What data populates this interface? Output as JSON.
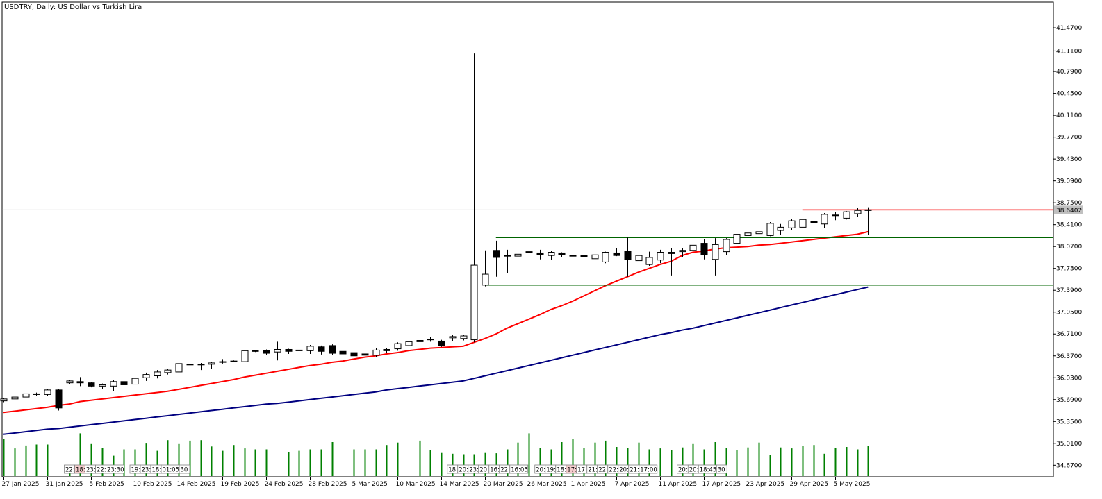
{
  "chart_data": {
    "type": "candlestick",
    "title": "USDTRY, Daily:  US Dollar vs Turkish Lira",
    "background": "#ffffff",
    "colors": {
      "bull_body": "#ffffff",
      "bear_body": "#000000",
      "wick": "#000000",
      "ma_fast": "#ff0000",
      "ma_slow": "#000080",
      "volume": "#008000",
      "resistance": "#ff0000",
      "range_lines": "#006400",
      "bid_line": "#c0c0c0",
      "price_badge": "#c0c0c0"
    },
    "ylim": [
      34.49,
      41.87
    ],
    "y_ticks": [
      "41.4700",
      "41.1100",
      "40.7900",
      "40.4500",
      "40.1100",
      "39.7700",
      "39.4300",
      "39.0900",
      "38.7500",
      "38.4100",
      "38.0700",
      "37.7300",
      "37.3900",
      "37.0500",
      "36.7100",
      "36.3700",
      "36.0300",
      "35.6900",
      "35.3500",
      "35.0100",
      "34.6700"
    ],
    "current_price": "38.6402",
    "x_labels": [
      "27 Jan 2025",
      "31 Jan 2025",
      "5 Feb 2025",
      "10 Feb 2025",
      "14 Feb 2025",
      "19 Feb 2025",
      "24 Feb 2025",
      "28 Feb 2025",
      "5 Mar 2025",
      "10 Mar 2025",
      "14 Mar 2025",
      "20 Mar 2025",
      "26 Mar 2025",
      "1 Apr 2025",
      "7 Apr 2025",
      "11 Apr 2025",
      "17 Apr 2025",
      "23 Apr 2025",
      "29 Apr 2025",
      "5 May 2025"
    ],
    "x_label_bars": [
      0,
      4,
      8,
      12,
      16,
      20,
      24,
      28,
      32,
      36,
      40,
      44,
      48,
      52,
      56,
      60,
      64,
      68,
      72,
      76
    ],
    "candles": [
      [
        35.67,
        35.71,
        35.65,
        35.7
      ],
      [
        35.7,
        35.74,
        35.69,
        35.73
      ],
      [
        35.73,
        35.8,
        35.72,
        35.78
      ],
      [
        35.78,
        35.8,
        35.75,
        35.77
      ],
      [
        35.77,
        35.86,
        35.75,
        35.84
      ],
      [
        35.84,
        35.86,
        35.52,
        35.56
      ],
      [
        35.95,
        36.0,
        35.93,
        35.98
      ],
      [
        35.97,
        36.04,
        35.9,
        35.95
      ],
      [
        35.95,
        35.96,
        35.88,
        35.9
      ],
      [
        35.9,
        35.94,
        35.86,
        35.92
      ],
      [
        35.9,
        36.0,
        35.82,
        35.97
      ],
      [
        35.97,
        35.98,
        35.89,
        35.92
      ],
      [
        35.93,
        36.06,
        35.9,
        36.02
      ],
      [
        36.03,
        36.11,
        35.98,
        36.08
      ],
      [
        36.06,
        36.15,
        36.02,
        36.12
      ],
      [
        36.11,
        36.17,
        36.08,
        36.15
      ],
      [
        36.12,
        36.27,
        36.05,
        36.25
      ],
      [
        36.24,
        36.26,
        36.22,
        36.23
      ],
      [
        36.23,
        36.26,
        36.15,
        36.24
      ],
      [
        36.24,
        36.28,
        36.17,
        36.26
      ],
      [
        36.27,
        36.32,
        36.25,
        36.28
      ],
      [
        36.28,
        36.3,
        36.27,
        36.29
      ],
      [
        36.28,
        36.55,
        36.25,
        36.45
      ],
      [
        36.45,
        36.46,
        36.43,
        36.44
      ],
      [
        36.45,
        36.47,
        36.38,
        36.41
      ],
      [
        36.43,
        36.59,
        36.3,
        36.47
      ],
      [
        36.47,
        36.48,
        36.4,
        36.44
      ],
      [
        36.45,
        36.47,
        36.42,
        36.46
      ],
      [
        36.45,
        36.54,
        36.4,
        36.52
      ],
      [
        36.51,
        36.53,
        36.39,
        36.44
      ],
      [
        36.53,
        36.55,
        36.38,
        36.41
      ],
      [
        36.44,
        36.46,
        36.37,
        36.4
      ],
      [
        36.42,
        36.45,
        36.34,
        36.37
      ],
      [
        36.4,
        36.44,
        36.33,
        36.38
      ],
      [
        36.38,
        36.49,
        36.35,
        36.46
      ],
      [
        36.45,
        36.49,
        36.42,
        36.47
      ],
      [
        36.48,
        36.58,
        36.45,
        36.56
      ],
      [
        36.53,
        36.62,
        36.51,
        36.59
      ],
      [
        36.59,
        36.62,
        36.56,
        36.61
      ],
      [
        36.62,
        36.66,
        36.59,
        36.63
      ],
      [
        36.6,
        36.62,
        36.51,
        36.53
      ],
      [
        36.65,
        36.7,
        36.6,
        36.67
      ],
      [
        36.64,
        36.7,
        36.61,
        36.68
      ],
      [
        36.62,
        41.07,
        36.58,
        37.78
      ],
      [
        37.47,
        38.01,
        37.45,
        37.64
      ],
      [
        38.01,
        38.16,
        37.6,
        37.9
      ],
      [
        37.92,
        38.02,
        37.66,
        37.93
      ],
      [
        37.92,
        37.96,
        37.89,
        37.95
      ],
      [
        37.99,
        38.0,
        37.93,
        37.97
      ],
      [
        37.97,
        38.02,
        37.87,
        37.94
      ],
      [
        37.93,
        38.0,
        37.86,
        37.98
      ],
      [
        37.97,
        37.98,
        37.91,
        37.94
      ],
      [
        37.93,
        37.97,
        37.83,
        37.92
      ],
      [
        37.93,
        37.96,
        37.83,
        37.91
      ],
      [
        37.88,
        37.99,
        37.82,
        37.94
      ],
      [
        37.83,
        37.99,
        37.81,
        37.98
      ],
      [
        37.97,
        38.04,
        37.92,
        37.93
      ],
      [
        38.0,
        38.21,
        37.6,
        37.87
      ],
      [
        37.85,
        38.21,
        37.8,
        37.93
      ],
      [
        37.79,
        37.99,
        37.77,
        37.9
      ],
      [
        37.86,
        38.02,
        37.81,
        37.98
      ],
      [
        37.96,
        38.04,
        37.62,
        37.98
      ],
      [
        37.99,
        38.05,
        37.9,
        38.01
      ],
      [
        38.01,
        38.11,
        37.98,
        38.09
      ],
      [
        38.12,
        38.19,
        37.87,
        37.94
      ],
      [
        37.87,
        38.2,
        37.62,
        38.1
      ],
      [
        37.99,
        38.2,
        37.94,
        38.18
      ],
      [
        38.12,
        38.28,
        38.08,
        38.26
      ],
      [
        38.24,
        38.33,
        38.2,
        38.28
      ],
      [
        38.27,
        38.33,
        38.23,
        38.3
      ],
      [
        38.24,
        38.45,
        38.23,
        38.43
      ],
      [
        38.32,
        38.42,
        38.25,
        38.37
      ],
      [
        38.36,
        38.5,
        38.33,
        38.47
      ],
      [
        38.37,
        38.51,
        38.34,
        38.49
      ],
      [
        38.46,
        38.53,
        38.43,
        38.44
      ],
      [
        38.42,
        38.59,
        38.36,
        38.57
      ],
      [
        38.55,
        38.61,
        38.48,
        38.56
      ],
      [
        38.51,
        38.62,
        38.49,
        38.61
      ],
      [
        38.58,
        38.67,
        38.53,
        38.63
      ],
      [
        38.63,
        38.68,
        38.25,
        38.64
      ]
    ],
    "ma_fast": [
      35.49,
      35.51,
      35.53,
      35.55,
      35.57,
      35.6,
      35.62,
      35.66,
      35.68,
      35.7,
      35.72,
      35.74,
      35.76,
      35.78,
      35.8,
      35.82,
      35.85,
      35.88,
      35.91,
      35.94,
      35.97,
      36.0,
      36.04,
      36.07,
      36.1,
      36.13,
      36.16,
      36.19,
      36.22,
      36.24,
      36.27,
      36.29,
      36.32,
      36.35,
      36.37,
      36.4,
      36.42,
      36.45,
      36.47,
      36.49,
      36.5,
      36.51,
      36.52,
      36.58,
      36.64,
      36.71,
      36.8,
      36.87,
      36.94,
      37.01,
      37.09,
      37.15,
      37.22,
      37.3,
      37.38,
      37.46,
      37.53,
      37.6,
      37.67,
      37.73,
      37.79,
      37.84,
      37.93,
      37.98,
      38.0,
      38.03,
      38.05,
      38.06,
      38.07,
      38.09,
      38.1,
      38.12,
      38.14,
      38.16,
      38.18,
      38.2,
      38.22,
      38.24,
      38.26,
      38.3
    ],
    "ma_slow": [
      35.15,
      35.17,
      35.19,
      35.21,
      35.23,
      35.24,
      35.26,
      35.28,
      35.3,
      35.32,
      35.34,
      35.36,
      35.38,
      35.4,
      35.42,
      35.44,
      35.46,
      35.48,
      35.5,
      35.52,
      35.54,
      35.56,
      35.58,
      35.6,
      35.62,
      35.63,
      35.65,
      35.67,
      35.69,
      35.71,
      35.73,
      35.75,
      35.77,
      35.79,
      35.81,
      35.84,
      35.86,
      35.88,
      35.9,
      35.92,
      35.94,
      35.96,
      35.98,
      36.02,
      36.06,
      36.1,
      36.14,
      36.18,
      36.22,
      36.26,
      36.3,
      36.34,
      36.38,
      36.42,
      36.46,
      36.5,
      36.54,
      36.58,
      36.62,
      36.66,
      36.7,
      36.73,
      36.77,
      36.8,
      36.84,
      36.88,
      36.92,
      36.96,
      37.0,
      37.04,
      37.08,
      37.12,
      37.16,
      37.2,
      37.24,
      37.28,
      37.32,
      37.36,
      37.4,
      37.44
    ],
    "volume_ratio": [
      0.77,
      0.57,
      0.63,
      0.65,
      0.65,
      0.0,
      0.09,
      0.88,
      0.66,
      0.58,
      0.42,
      0.55,
      0.55,
      0.67,
      0.52,
      0.74,
      0.66,
      0.73,
      0.74,
      0.61,
      0.52,
      0.64,
      0.57,
      0.55,
      0.55,
      0.0,
      0.5,
      0.52,
      0.55,
      0.55,
      0.7,
      0.0,
      0.55,
      0.55,
      0.55,
      0.64,
      0.69,
      0.0,
      0.73,
      0.53,
      0.49,
      0.46,
      0.45,
      0.45,
      0.49,
      0.47,
      0.55,
      0.69,
      0.88,
      0.58,
      0.55,
      0.7,
      0.76,
      0.58,
      0.69,
      0.73,
      0.6,
      0.58,
      0.69,
      0.55,
      0.57,
      0.54,
      0.59,
      0.66,
      0.55,
      0.7,
      0.58,
      0.53,
      0.59,
      0.69,
      0.44,
      0.59,
      0.57,
      0.62,
      0.64,
      0.46,
      0.58,
      0.6,
      0.55,
      0.62
    ],
    "time_tag_groups": [
      {
        "labels": [
          "22:",
          "18:",
          "23:",
          "22:",
          "23:30"
        ],
        "highlight": [
          1
        ]
      },
      {
        "labels": [
          "19:",
          "23:",
          "18:",
          "01:05",
          "30"
        ],
        "highlight": []
      },
      {
        "labels": [
          "18:",
          "20:",
          "23:",
          "20:",
          "16:",
          "22:",
          "16:05"
        ],
        "highlight": []
      },
      {
        "labels": [
          "20:",
          "19:",
          "18:",
          "17:",
          "17:",
          "21:",
          "22:",
          "22:",
          "20:",
          "21:",
          "17:00"
        ],
        "highlight": [
          3
        ]
      },
      {
        "labels": [
          "20:00"
        ],
        "highlight": []
      },
      {
        "labels": [
          "20:",
          "18:45",
          "30"
        ],
        "highlight": []
      }
    ],
    "levels": {
      "resistance": 38.64,
      "range_top": 38.21,
      "range_bottom": 37.47,
      "bid": 38.64
    }
  }
}
